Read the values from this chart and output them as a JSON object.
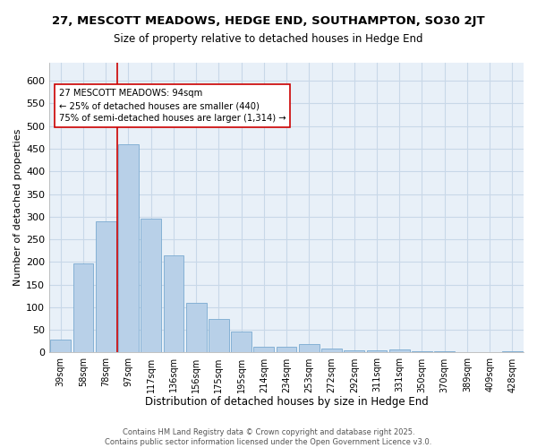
{
  "title": "27, MESCOTT MEADOWS, HEDGE END, SOUTHAMPTON, SO30 2JT",
  "subtitle": "Size of property relative to detached houses in Hedge End",
  "xlabel": "Distribution of detached houses by size in Hedge End",
  "ylabel": "Number of detached properties",
  "categories": [
    "39sqm",
    "58sqm",
    "78sqm",
    "97sqm",
    "117sqm",
    "136sqm",
    "156sqm",
    "175sqm",
    "195sqm",
    "214sqm",
    "234sqm",
    "253sqm",
    "272sqm",
    "292sqm",
    "311sqm",
    "331sqm",
    "350sqm",
    "370sqm",
    "389sqm",
    "409sqm",
    "428sqm"
  ],
  "values": [
    28,
    197,
    290,
    460,
    295,
    215,
    110,
    75,
    47,
    12,
    12,
    18,
    8,
    4,
    4,
    6,
    2,
    2,
    1,
    1,
    3
  ],
  "bar_color": "#b8d0e8",
  "bar_edgecolor": "#7aaad0",
  "bar_width": 0.9,
  "red_line_index": 3,
  "annotation_text": "27 MESCOTT MEADOWS: 94sqm\n← 25% of detached houses are smaller (440)\n75% of semi-detached houses are larger (1,314) →",
  "annotation_box_edgecolor": "#cc0000",
  "annotation_box_facecolor": "#ffffff",
  "red_line_color": "#cc0000",
  "grid_color": "#c8d8e8",
  "background_color": "#e8f0f8",
  "ylim": [
    0,
    640
  ],
  "yticks": [
    0,
    50,
    100,
    150,
    200,
    250,
    300,
    350,
    400,
    450,
    500,
    550,
    600
  ],
  "footer_line1": "Contains HM Land Registry data © Crown copyright and database right 2025.",
  "footer_line2": "Contains public sector information licensed under the Open Government Licence v3.0."
}
